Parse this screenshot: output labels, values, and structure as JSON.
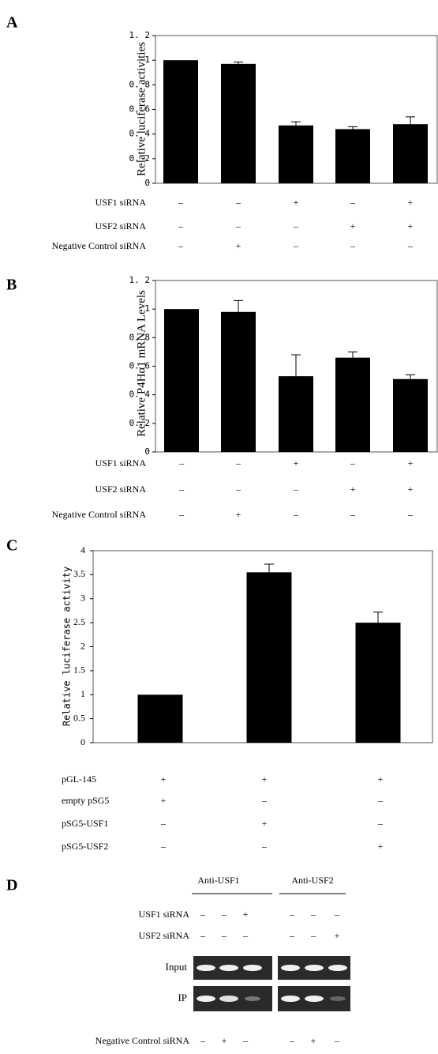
{
  "chart_data": [
    {
      "type": "bar",
      "panel": "A",
      "y_label": "Relative luciferase activities",
      "color": "#000000",
      "values": [
        1.0,
        0.97,
        0.47,
        0.44,
        0.48
      ],
      "errors": [
        0,
        0.015,
        0.03,
        0.02,
        0.06
      ],
      "ylim": [
        0,
        1.2
      ],
      "yticks": [
        0,
        {
          "value": 0.2,
          "label": "0. 2"
        },
        {
          "value": 0.4,
          "label": "0. 4"
        },
        {
          "value": 0.6,
          "label": "0. 6"
        },
        {
          "value": 0.8,
          "label": "0. 8"
        },
        1,
        {
          "value": 1.2,
          "label": "1. 2"
        }
      ],
      "conditions": [
        {
          "name": "USF1 siRNA",
          "signs": [
            "–",
            "–",
            "+",
            "–",
            "+"
          ]
        },
        {
          "name": "USF2 siRNA",
          "signs": [
            "–",
            "–",
            "–",
            "+",
            "+"
          ]
        },
        {
          "name": "Negative Control  siRNA",
          "signs": [
            "–",
            "+",
            "–",
            "–",
            "–"
          ]
        }
      ]
    },
    {
      "type": "bar",
      "panel": "B",
      "y_label": "Relative P4Hα1 mRNA Levels",
      "color": "#000000",
      "values": [
        1.0,
        0.98,
        0.53,
        0.66,
        0.51
      ],
      "errors": [
        0,
        0.08,
        0.15,
        0.04,
        0.03
      ],
      "ylim": [
        0,
        1.2
      ],
      "yticks": [
        0,
        {
          "value": 0.2,
          "label": "0. 2"
        },
        {
          "value": 0.4,
          "label": "0. 4"
        },
        {
          "value": 0.6,
          "label": "0. 6"
        },
        {
          "value": 0.8,
          "label": "0. 8"
        },
        1,
        {
          "value": 1.2,
          "label": "1. 2"
        }
      ],
      "conditions": [
        {
          "name": "USF1 siRNA",
          "signs": [
            "–",
            "–",
            "+",
            "–",
            "+"
          ]
        },
        {
          "name": "USF2 siRNA",
          "signs": [
            "–",
            "–",
            "–",
            "+",
            "+"
          ]
        },
        {
          "name": "Negative Control  siRNA",
          "signs": [
            "–",
            "+",
            "–",
            "–",
            "–"
          ]
        }
      ]
    },
    {
      "type": "bar",
      "panel": "C",
      "y_label": "Relative luciferase activity",
      "color": "#000000",
      "values": [
        1.0,
        3.55,
        2.5
      ],
      "errors": [
        0,
        0.17,
        0.22
      ],
      "ylim": [
        0,
        4
      ],
      "yticks": [
        0,
        0.5,
        1,
        1.5,
        2,
        2.5,
        3,
        3.5,
        4
      ],
      "conditions": [
        {
          "name": "pGL-145",
          "signs": [
            "+",
            "+",
            "+"
          ]
        },
        {
          "name": "empty pSG5",
          "signs": [
            "+",
            "–",
            "–"
          ]
        },
        {
          "name": "pSG5-USF1",
          "signs": [
            "–",
            "+",
            "–"
          ]
        },
        {
          "name": "pSG5-USF2",
          "signs": [
            "–",
            "–",
            "+"
          ]
        }
      ]
    }
  ],
  "panel_d": {
    "panel": "D",
    "groups": [
      "Anti-USF1",
      "Anti-USF2"
    ],
    "conditions": [
      {
        "name": "USF1 siRNA",
        "signs": [
          "–",
          "–",
          "+",
          "–",
          "–",
          "–"
        ]
      },
      {
        "name": "USF2 siRNA",
        "signs": [
          "–",
          "–",
          "–",
          "–",
          "–",
          "+"
        ]
      }
    ],
    "rows": [
      "Input",
      "IP"
    ],
    "negative_control": {
      "name": "Negative Control siRNA",
      "signs": [
        "–",
        "+",
        "–",
        "–",
        "+",
        "–"
      ]
    }
  }
}
